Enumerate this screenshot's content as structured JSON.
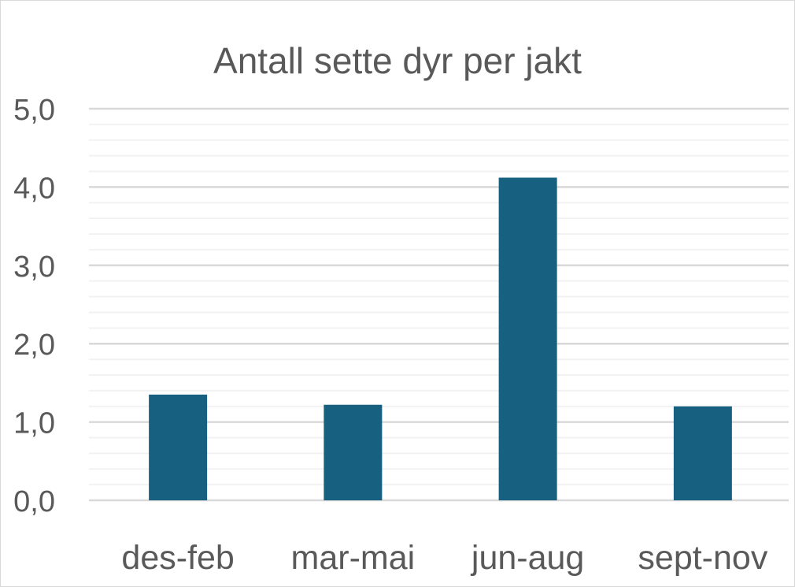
{
  "chart_data": {
    "type": "bar",
    "title": "Antall sette dyr per jakt",
    "categories": [
      "des-feb",
      "mar-mai",
      "jun-aug",
      "sept-nov"
    ],
    "values": [
      1.35,
      1.22,
      4.12,
      1.2
    ],
    "ylim": [
      0,
      5
    ],
    "yticks": [
      "0,0",
      "1,0",
      "2,0",
      "3,0",
      "4,0",
      "5,0"
    ],
    "minor_grid_step": 0.2,
    "grid": true,
    "legend": "none",
    "bar_color": "#17607f"
  }
}
